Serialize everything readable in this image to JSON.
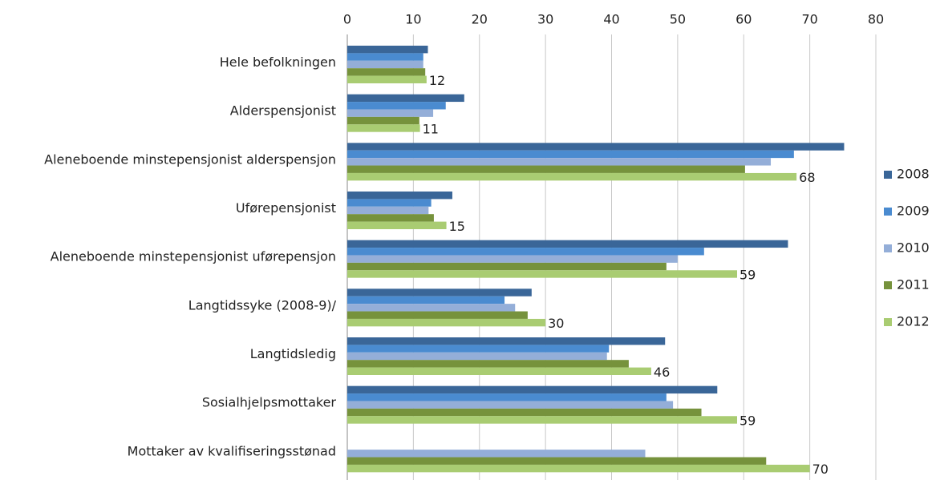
{
  "chart_data": {
    "type": "bar",
    "orientation": "horizontal",
    "grid": true,
    "legend": "right",
    "categories": [
      "Hele befolkningen",
      "Alderspensjonist",
      "Aleneboende minstepensjonist alderspensjon",
      "Uførepensjonist",
      "Aleneboende minstepensjonist uførepensjon",
      "Langtidssyke (2008-9)/",
      "Langtidsledig",
      "Sosialhjelpsmottaker",
      "Mottaker av kvalifiseringsstønad"
    ],
    "xlim": [
      0,
      80
    ],
    "xticks": [
      0,
      10,
      20,
      30,
      40,
      50,
      60,
      70,
      80
    ],
    "series": [
      {
        "name": "2008",
        "color": "#3a6698",
        "values": [
          12.2,
          17.7,
          75.2,
          15.9,
          66.7,
          27.9,
          48.1,
          56.0,
          null
        ]
      },
      {
        "name": "2009",
        "color": "#4a8bd0",
        "values": [
          11.5,
          14.9,
          67.6,
          12.7,
          54.0,
          23.8,
          39.6,
          48.3,
          null
        ]
      },
      {
        "name": "2010",
        "color": "#94aed8",
        "values": [
          11.5,
          13.0,
          64.1,
          12.3,
          50.0,
          25.4,
          39.3,
          49.3,
          45.1
        ]
      },
      {
        "name": "2011",
        "color": "#76923c",
        "values": [
          11.8,
          10.9,
          60.2,
          13.1,
          48.3,
          27.3,
          42.6,
          53.6,
          63.4
        ]
      },
      {
        "name": "2012",
        "color": "#a9cc72",
        "values": [
          12,
          11,
          68,
          15,
          59,
          30,
          46,
          59,
          70
        ],
        "data_labels": true
      }
    ]
  }
}
